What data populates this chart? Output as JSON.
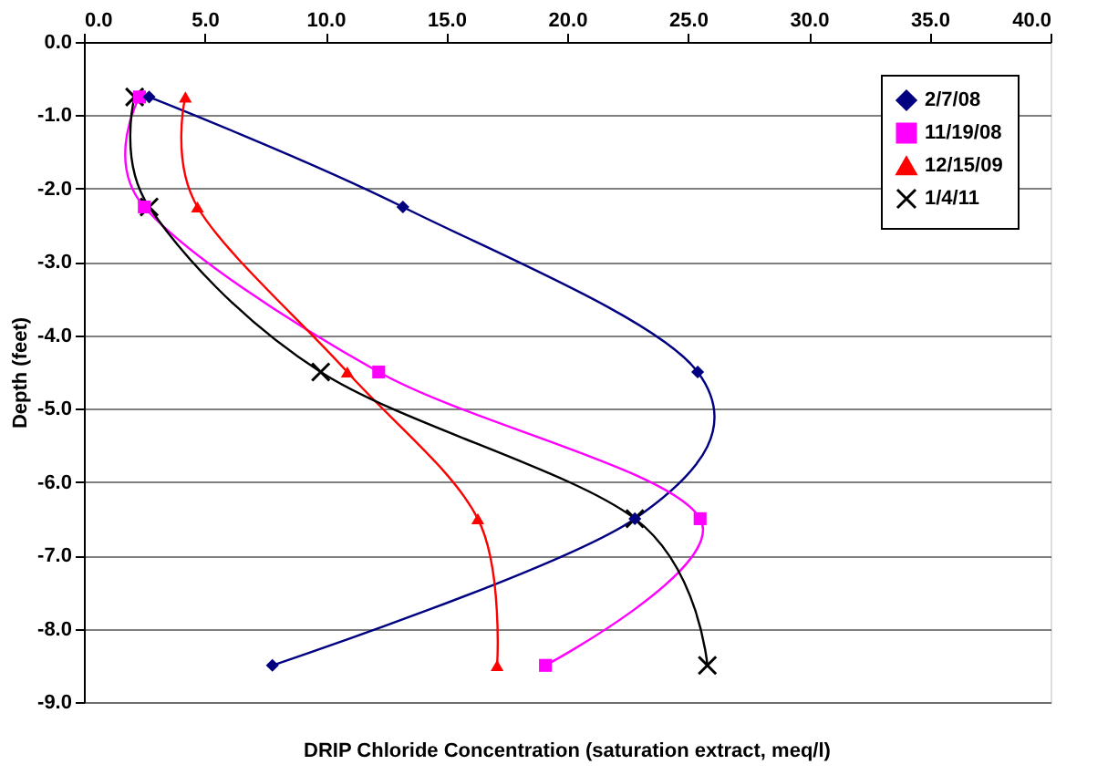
{
  "chart_data": {
    "type": "line",
    "xlabel": "DRIP Chloride Concentration (saturation extract, meq/l)",
    "ylabel": "Depth (feet)",
    "xlim": [
      0,
      40
    ],
    "xticks": [
      {
        "value": 0,
        "label": "0.0"
      },
      {
        "value": 5,
        "label": "5.0"
      },
      {
        "value": 10,
        "label": "10.0"
      },
      {
        "value": 15,
        "label": "15.0"
      },
      {
        "value": 20,
        "label": "20.0"
      },
      {
        "value": 25,
        "label": "25.0"
      },
      {
        "value": 30,
        "label": "30.0"
      },
      {
        "value": 35,
        "label": "35.0"
      },
      {
        "value": 40,
        "label": "40.0"
      }
    ],
    "ylim": [
      -9,
      0
    ],
    "yticks": [
      {
        "value": 0,
        "label": "0.0"
      },
      {
        "value": -1,
        "label": "-1.0"
      },
      {
        "value": -2,
        "label": "-2.0"
      },
      {
        "value": -3,
        "label": "-3.0"
      },
      {
        "value": -4,
        "label": "-4.0"
      },
      {
        "value": -5,
        "label": "-5.0"
      },
      {
        "value": -6,
        "label": "-6.0"
      },
      {
        "value": -7,
        "label": "-7.0"
      },
      {
        "value": -8,
        "label": "-8.0"
      },
      {
        "value": -9,
        "label": "-9.0"
      }
    ],
    "grid": "y",
    "legend": "top right",
    "line_style": "solid",
    "series": [
      {
        "name": "2/7/08",
        "color": "#000080",
        "marker": "diamond",
        "x": [
          2.7,
          13.2,
          25.4,
          22.8,
          7.8
        ],
        "values": [
          -0.75,
          -2.25,
          -4.5,
          -6.5,
          -8.5
        ]
      },
      {
        "name": "11/19/08",
        "color": "#ff00ff",
        "marker": "square",
        "x": [
          2.3,
          2.5,
          12.2,
          25.5,
          19.1
        ],
        "values": [
          -0.75,
          -2.25,
          -4.5,
          -6.5,
          -8.5
        ]
      },
      {
        "name": "12/15/09",
        "color": "#ff0000",
        "marker": "triangle",
        "x": [
          4.2,
          4.7,
          10.9,
          16.3,
          17.1
        ],
        "values": [
          -0.75,
          -2.25,
          -4.5,
          -6.5,
          -8.5
        ]
      },
      {
        "name": "1/4/11",
        "color": "#000000",
        "marker": "cross",
        "x": [
          2.1,
          2.7,
          9.8,
          22.8,
          25.8
        ],
        "values": [
          -0.75,
          -2.25,
          -4.5,
          -6.5,
          -8.5
        ]
      }
    ]
  }
}
